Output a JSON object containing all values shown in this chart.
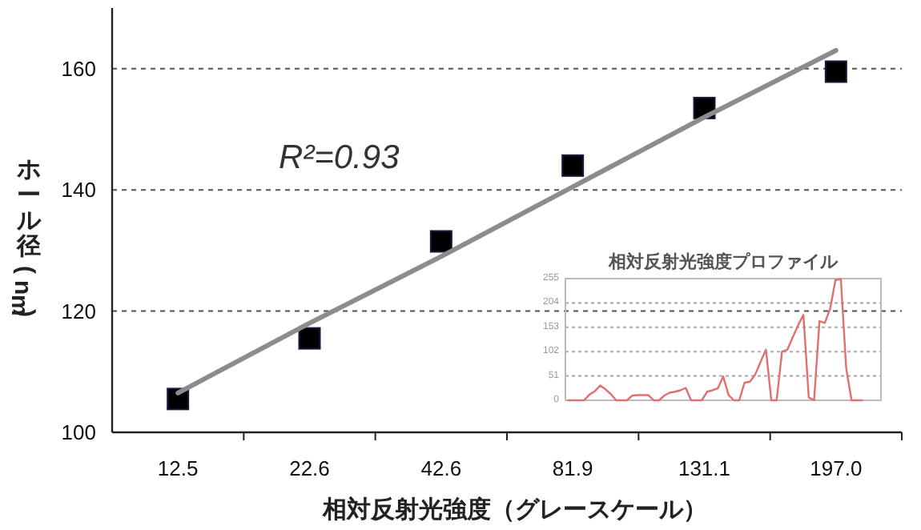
{
  "chart_data": [
    {
      "type": "scatter",
      "xlabel": "相対反射光強度（グレースケール）",
      "ylabel": "ホール径(nm)",
      "categories": [
        "12.5",
        "22.6",
        "42.6",
        "81.9",
        "131.1",
        "197.0"
      ],
      "grid": "y",
      "ylim": [
        100,
        170
      ],
      "yticks": [
        100,
        120,
        140,
        160
      ],
      "annotations": [
        "R²=0.93"
      ],
      "series": [
        {
          "color": "#000000",
          "marker": "square",
          "values": [
            105.5,
            115.5,
            131.5,
            144,
            153.5,
            159.5
          ]
        },
        {
          "type": "line",
          "color": "#8c8c8c",
          "values": [
            106.5,
            118,
            129,
            140.5,
            152,
            163
          ]
        }
      ]
    },
    {
      "type": "line",
      "title": "相対反射光強度プロファイル",
      "categories": [
        null,
        null,
        null,
        null,
        null,
        null,
        null,
        null,
        null,
        null,
        null,
        null,
        null,
        null,
        null,
        null,
        null,
        null,
        null,
        null,
        null,
        null,
        null,
        null,
        null,
        null,
        null,
        null,
        null,
        null,
        null,
        null,
        null,
        null,
        null,
        null,
        null,
        null,
        null,
        null,
        null,
        null,
        null,
        null,
        null,
        null,
        null,
        null,
        null,
        null,
        null,
        null,
        null,
        null,
        null,
        null,
        null,
        null,
        null
      ],
      "grid": "y",
      "ylim": [
        0,
        255
      ],
      "yticks": [
        0,
        51,
        102,
        153,
        204,
        255
      ],
      "series": [
        {
          "color": "#e07070",
          "values": [
            0,
            0,
            0,
            0,
            12,
            19,
            31,
            23,
            13,
            0,
            0,
            0,
            10,
            11,
            11,
            11,
            0,
            0,
            10,
            16,
            18,
            21,
            26,
            0,
            0,
            0,
            18,
            21,
            25,
            50,
            11,
            0,
            0,
            37,
            39,
            54,
            81,
            106,
            0,
            0,
            102,
            106,
            132,
            157,
            179,
            6,
            0,
            166,
            162,
            192,
            252,
            254,
            67,
            0,
            0,
            0,
            null,
            null,
            null
          ]
        }
      ]
    }
  ]
}
